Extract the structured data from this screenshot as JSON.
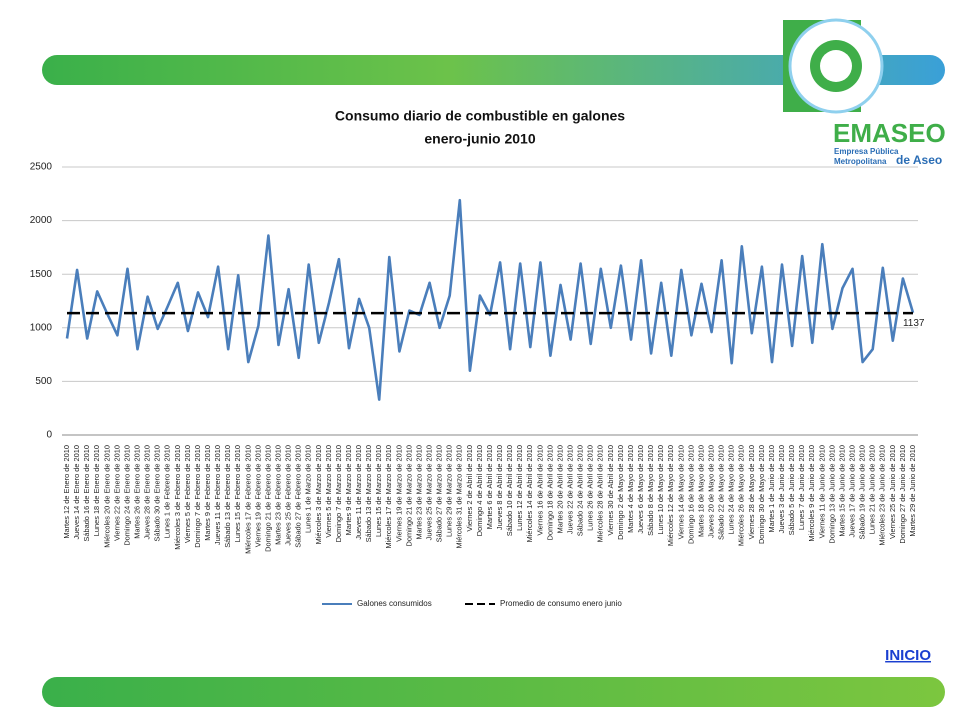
{
  "chart_data": {
    "type": "line",
    "title": "Consumo diario de combustible en galones",
    "subtitle": "enero-junio 2010",
    "categories": [
      "Martes 12 de Enero de 2010",
      "Jueves 14 de Enero de 2010",
      "Sábado 16 de Enero de 2010",
      "Lunes 18 de Enero de 2010",
      "Miércoles 20 de Enero de 2010",
      "Viernes 22 de Enero de 2010",
      "Domingo 24 de Enero de 2010",
      "Martes 26 de Enero de 2010",
      "Jueves 28 de Enero de 2010",
      "Sábado 30 de Enero de 2010",
      "Lunes 1 de Febrero de 2010",
      "Miércoles 3 de Febrero de 2010",
      "Viernes 5 de Febrero de 2010",
      "Domingo 7 de Febrero de 2010",
      "Martes 9 de Febrero de 2010",
      "Jueves 11 de Febrero de 2010",
      "Sábado 13 de Febrero de 2010",
      "Lunes 15 de Febrero de 2010",
      "Miércoles 17 de Febrero de 2010",
      "Viernes 19 de Febrero de 2010",
      "Domingo 21 de Febrero de 2010",
      "Martes 23 de Febrero de 2010",
      "Jueves 25 de Febrero de 2010",
      "Sábado 27 de Febrero de 2010",
      "Lunes 1 de Marzo de 2010",
      "Miércoles 3 de Marzo de 2010",
      "Viernes 5 de Marzo de 2010",
      "Domingo 7 de Marzo de 2010",
      "Martes 9 de Marzo de 2010",
      "Jueves 11 de Marzo de 2010",
      "Sábado 13 de Marzo de 2010",
      "Lunes 15 de Marzo de 2010",
      "Miércoles 17 de Marzo de 2010",
      "Viernes 19 de Marzo de 2010",
      "Domingo 21 de Marzo de 2010",
      "Martes 23 de Marzo de 2010",
      "Jueves 25 de Marzo de 2010",
      "Sábado 27 de Marzo de 2010",
      "Lunes 29 de Marzo de 2010",
      "Miércoles 31 de Marzo de 2010",
      "Viernes 2 de Abril de 2010",
      "Domingo 4 de Abril de 2010",
      "Martes 6 de Abril de 2010",
      "Jueves 8 de Abril de 2010",
      "Sábado 10 de Abril de 2010",
      "Lunes 12 de Abril de 2010",
      "Miércoles 14 de Abril de 2010",
      "Viernes 16 de Abril de 2010",
      "Domingo 18 de Abril de 2010",
      "Martes 20 de Abril de 2010",
      "Jueves 22 de Abril de 2010",
      "Sábado 24 de Abril de 2010",
      "Lunes 26 de Abril de 2010",
      "Miércoles 28 de Abril de 2010",
      "Viernes 30 de Abril de 2010",
      "Domingo 2 de Mayo de 2010",
      "Martes 4 de Mayo de 2010",
      "Jueves 6 de Mayo de 2010",
      "Sábado 8 de Mayo de 2010",
      "Lunes 10 de Mayo de 2010",
      "Miércoles 12 de Mayo de 2010",
      "Viernes 14 de Mayo de 2010",
      "Domingo 16 de Mayo de 2010",
      "Martes 18 de Mayo de 2010",
      "Jueves 20 de Mayo de 2010",
      "Sábado 22 de Mayo de 2010",
      "Lunes 24 de Mayo de 2010",
      "Miércoles 26 de Mayo de 2010",
      "Viernes 28 de Mayo de 2010",
      "Domingo 30 de Mayo de 2010",
      "Martes 1 de Junio de 2010",
      "Jueves 3 de Junio de 2010",
      "Sábado 5 de Junio de 2010",
      "Lunes 7 de Junio de 2010",
      "Miércoles 9 de Junio de 2010",
      "Viernes 11 de Junio de 2010",
      "Domingo 13 de Junio de 2010",
      "Martes 15 de Junio de 2010",
      "Jueves 17 de Junio de 2010",
      "Sábado 19 de Junio de 2010",
      "Lunes 21 de Junio de 2010",
      "Miércoles 23 de Junio de 2010",
      "Viernes 25 de Junio de 2010",
      "Domingo 27 de Junio de 2010",
      "Martes 29 de Junio de 2010"
    ],
    "series": [
      {
        "name": "Galones consumidos",
        "color": "#4a7ebb",
        "values": [
          900,
          1540,
          900,
          1340,
          1130,
          930,
          1550,
          800,
          1290,
          990,
          1200,
          1420,
          970,
          1330,
          1100,
          1570,
          800,
          1490,
          680,
          1020,
          1860,
          840,
          1360,
          720,
          1590,
          860,
          1230,
          1640,
          810,
          1270,
          1000,
          330,
          1660,
          780,
          1160,
          1120,
          1420,
          1000,
          1300,
          2190,
          600,
          1300,
          1120,
          1610,
          800,
          1600,
          820,
          1610,
          740,
          1400,
          890,
          1600,
          850,
          1550,
          1000,
          1580,
          890,
          1630,
          760,
          1420,
          740,
          1540,
          930,
          1410,
          960,
          1630,
          670,
          1760,
          950,
          1570,
          680,
          1590,
          830,
          1670,
          860,
          1780,
          990,
          1370,
          1550,
          680,
          800,
          1560,
          880,
          1460,
          1140
        ]
      },
      {
        "name": "Promedio de consumo enero junio",
        "color": "#000000",
        "dashed": true,
        "values": [
          1137,
          1137,
          1137,
          1137,
          1137,
          1137,
          1137,
          1137,
          1137,
          1137,
          1137,
          1137,
          1137,
          1137,
          1137,
          1137,
          1137,
          1137,
          1137,
          1137,
          1137,
          1137,
          1137,
          1137,
          1137,
          1137,
          1137,
          1137,
          1137,
          1137,
          1137,
          1137,
          1137,
          1137,
          1137,
          1137,
          1137,
          1137,
          1137,
          1137,
          1137,
          1137,
          1137,
          1137,
          1137,
          1137,
          1137,
          1137,
          1137,
          1137,
          1137,
          1137,
          1137,
          1137,
          1137,
          1137,
          1137,
          1137,
          1137,
          1137,
          1137,
          1137,
          1137,
          1137,
          1137,
          1137,
          1137,
          1137,
          1137,
          1137,
          1137,
          1137,
          1137,
          1137,
          1137,
          1137,
          1137,
          1137,
          1137,
          1137,
          1137,
          1137,
          1137,
          1137,
          1137
        ]
      }
    ],
    "ylim": [
      0,
      2500
    ],
    "yticks": [
      0,
      500,
      1000,
      1500,
      2000,
      2500
    ],
    "grid": true,
    "legend": "bottom"
  },
  "logo": {
    "name": "EMASEO",
    "line1": "Empresa Pública",
    "line2": "Metropolitana",
    "line3": "de Aseo"
  },
  "nav": {
    "link": "INICIO"
  }
}
